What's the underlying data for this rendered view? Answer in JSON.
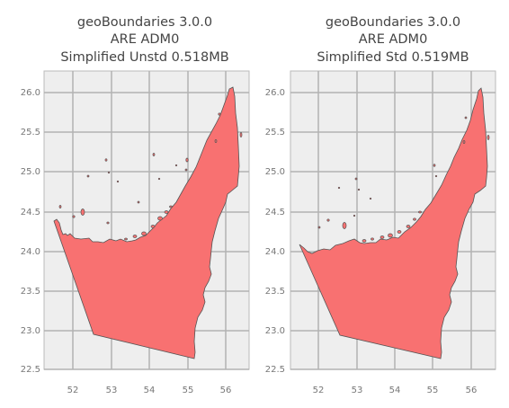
{
  "maps": [
    {
      "id": "left",
      "title_lines": [
        "geoBoundaries 3.0.0",
        "ARE ADM0",
        "Simplified Unstd 0.518MB"
      ],
      "x_ticks": [
        "52",
        "53",
        "54",
        "55",
        "56"
      ],
      "y_ticks": [
        "22.5",
        "23.0",
        "23.5",
        "24.0",
        "24.5",
        "25.0",
        "25.5",
        "26.0"
      ]
    },
    {
      "id": "right",
      "title_lines": [
        "geoBoundaries 3.0.0",
        "ARE ADM0",
        "Simplified Std 0.519MB"
      ],
      "x_ticks": [
        "52",
        "53",
        "54",
        "55",
        "56"
      ],
      "y_ticks": [
        "22.5",
        "23.0",
        "23.5",
        "24.0",
        "24.5",
        "25.0",
        "25.5",
        "26.0"
      ]
    }
  ],
  "style": {
    "fill_color": "#f87171",
    "stroke_color": "#555555",
    "panel_bg": "#eeeeee",
    "grid_color": "#b2b2b2",
    "frame_color": "#bbbbbb"
  }
}
